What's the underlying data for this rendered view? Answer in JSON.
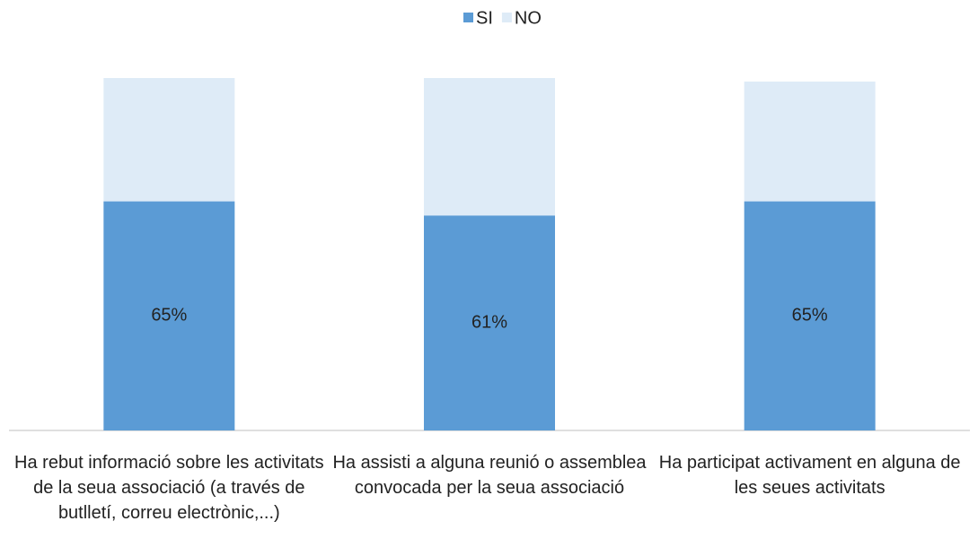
{
  "chart_data": {
    "type": "stacked_bar",
    "categories": [
      "Ha rebut informació sobre les activitats de la seua associació (a través de butlletí, correu electrònic,...)",
      "Ha assisti a alguna reunió o assemblea convocada per la seua associació",
      "Ha participat activament en alguna de les seues activitats"
    ],
    "series": [
      {
        "name": "SI",
        "color": "#5b9bd5",
        "values": [
          65,
          61,
          65
        ],
        "value_labels": [
          "65%",
          "61%",
          "65%"
        ]
      },
      {
        "name": "NO",
        "color": "#deebf7",
        "values": [
          35,
          39,
          34
        ]
      }
    ],
    "ylim": [
      0,
      100
    ],
    "legend": "top"
  }
}
